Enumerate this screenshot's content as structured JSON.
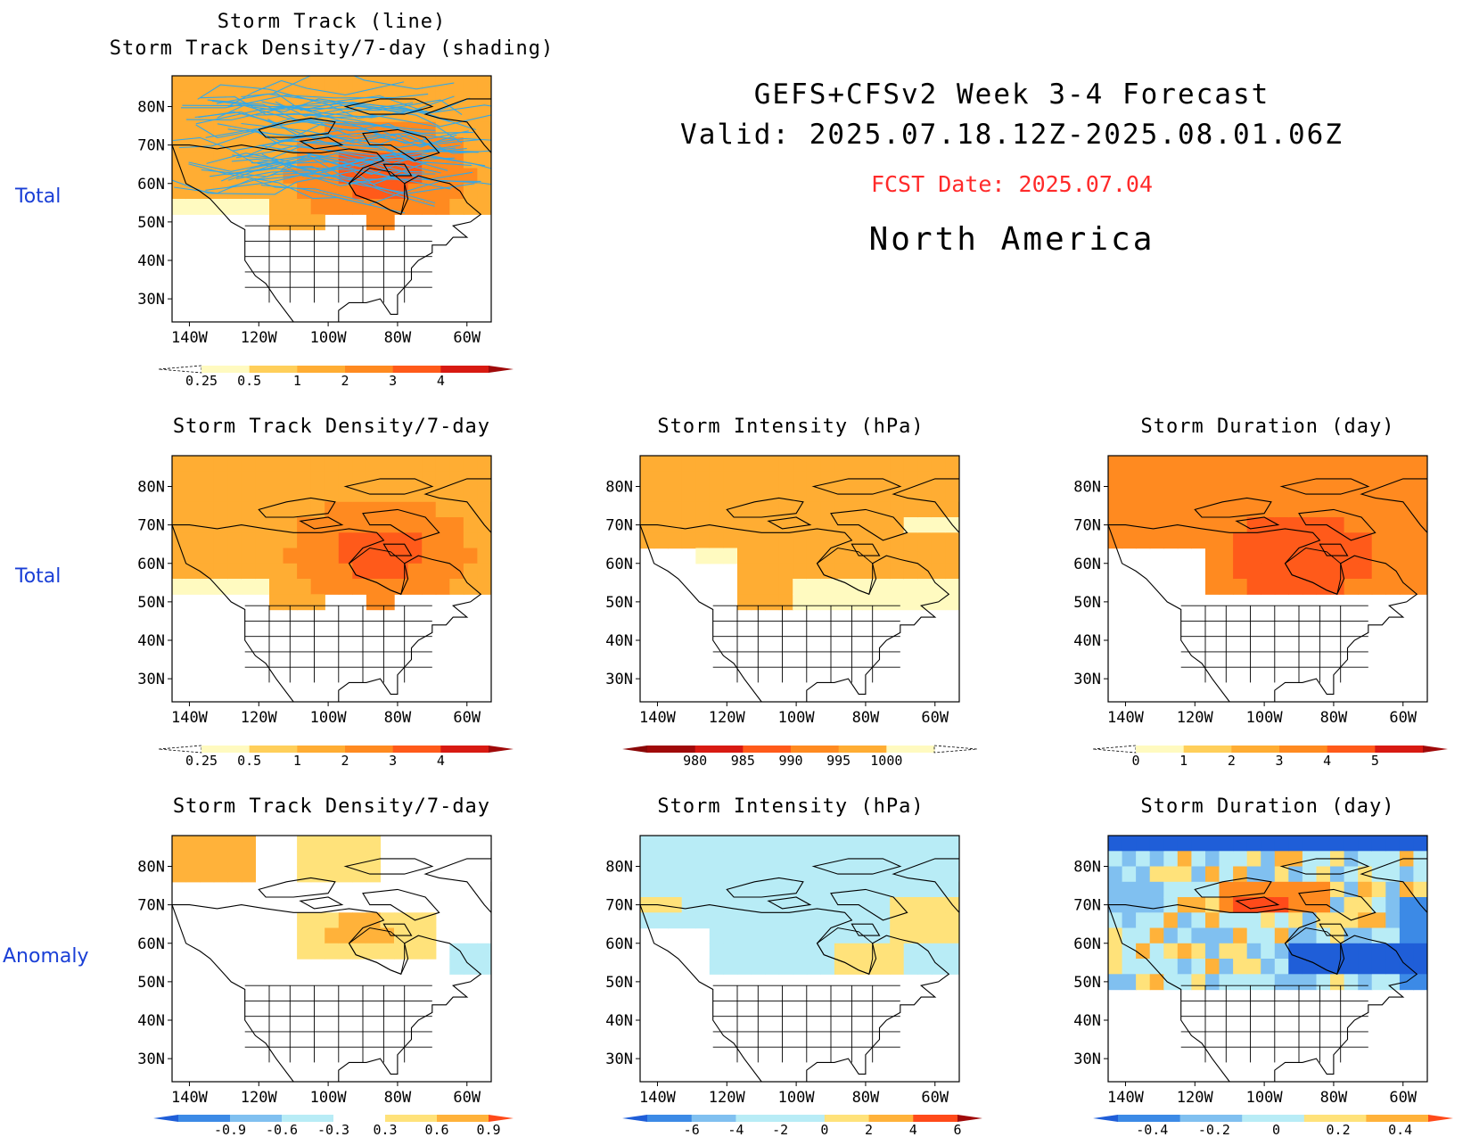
{
  "header": {
    "title_line1": "GEFS+CFSv2 Week 3-4 Forecast",
    "title_line2": "Valid: 2025.07.18.12Z-2025.08.01.06Z",
    "fcst_date": "FCST Date: 2025.07.04",
    "region": "North America"
  },
  "row_labels": [
    "Total",
    "Total",
    "Anomaly"
  ],
  "axes": {
    "lat_labels": [
      "80N",
      "70N",
      "60N",
      "50N",
      "40N",
      "30N"
    ],
    "lon_labels": [
      "140W",
      "120W",
      "100W",
      "80W",
      "60W"
    ]
  },
  "colors": {
    "density": [
      "#fffac0",
      "#ffcf5a",
      "#ffad33",
      "#ff8a20",
      "#ff5a1a",
      "#d81a12",
      "#a00a0a"
    ],
    "intensity": [
      "#a00a0a",
      "#d81a12",
      "#ff5a1a",
      "#ff8a20",
      "#ffad33",
      "#ffcf5a",
      "#fffac0"
    ],
    "duration": [
      "#fffac0",
      "#ffcf5a",
      "#ffad33",
      "#ff8a20",
      "#ff5a1a",
      "#d81a12",
      "#a00a0a"
    ],
    "anomaly": [
      "#1f5ed8",
      "#3c8ae6",
      "#80c0f0",
      "#b8ecf6",
      "#ffffff",
      "#ffe27a",
      "#ffb23a",
      "#ff8a20",
      "#ff4a1a",
      "#c81010"
    ],
    "track_line": "#33a8e8",
    "label_blue": "#1a3fd6",
    "fcst_red": "#ff2a2a"
  },
  "panels": {
    "total_track": {
      "title_line1": "Storm Track (line)",
      "title_line2": "Storm Track Density/7-day (shading)",
      "colorbar_labels": [
        "0.25",
        "0.5",
        "1",
        "2",
        "3",
        "4"
      ]
    },
    "total_density": {
      "title": "Storm Track Density/7-day",
      "colorbar_labels": [
        "0.25",
        "0.5",
        "1",
        "2",
        "3",
        "4"
      ]
    },
    "total_intensity": {
      "title": "Storm Intensity (hPa)",
      "colorbar_labels": [
        "980",
        "985",
        "990",
        "995",
        "1000"
      ]
    },
    "total_duration": {
      "title": "Storm Duration (day)",
      "colorbar_labels": [
        "0",
        "1",
        "2",
        "3",
        "4",
        "5"
      ]
    },
    "anom_density": {
      "title": "Storm Track Density/7-day",
      "colorbar_labels": [
        "-0.9",
        "-0.6",
        "-0.3",
        "0.3",
        "0.6",
        "0.9"
      ]
    },
    "anom_intensity": {
      "title": "Storm Intensity (hPa)",
      "colorbar_labels": [
        "-6",
        "-4",
        "-2",
        "0",
        "2",
        "4",
        "6"
      ]
    },
    "anom_duration": {
      "title": "Storm Duration (day)",
      "colorbar_labels": [
        "-0.4",
        "-0.2",
        "0",
        "0.2",
        "0.4"
      ]
    }
  }
}
